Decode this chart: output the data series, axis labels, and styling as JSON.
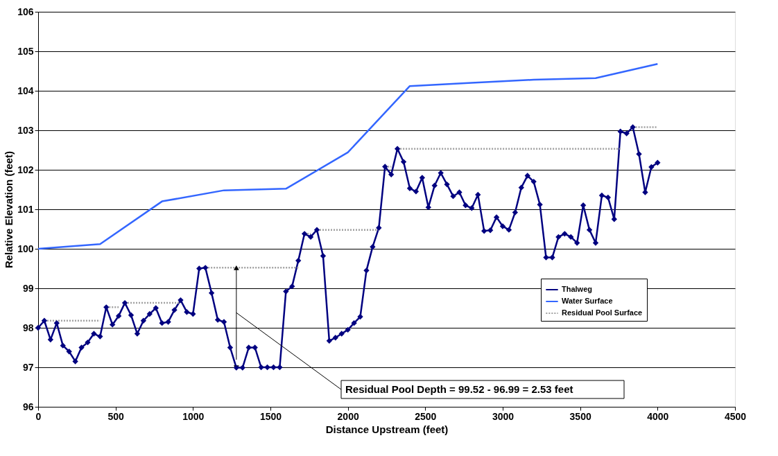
{
  "chart_data": {
    "type": "line",
    "xlabel": "Distance Upstream (feet)",
    "ylabel": "Relative Elevation (feet)",
    "xlim": [
      0,
      4500
    ],
    "xticks": [
      0,
      500,
      1000,
      1500,
      2000,
      2500,
      3000,
      3500,
      4000,
      4500
    ],
    "ylim": [
      96,
      106
    ],
    "yticks": [
      96,
      97,
      98,
      99,
      100,
      101,
      102,
      103,
      104,
      105,
      106
    ],
    "grid": "y",
    "legend": "right",
    "annotations": [
      "Residual Pool Depth =  99.52 - 96.99 = 2.53 feet"
    ],
    "series": [
      {
        "name": "Thalweg",
        "color": "#000080",
        "marker": "diamond",
        "line_style": "solid",
        "x": [
          0,
          40,
          80,
          120,
          160,
          200,
          240,
          280,
          320,
          360,
          400,
          440,
          480,
          520,
          560,
          600,
          640,
          680,
          720,
          760,
          800,
          840,
          880,
          920,
          960,
          1000,
          1040,
          1080,
          1120,
          1160,
          1200,
          1240,
          1280,
          1320,
          1360,
          1400,
          1440,
          1480,
          1520,
          1560,
          1600,
          1640,
          1680,
          1720,
          1760,
          1800,
          1840,
          1880,
          1920,
          1960,
          2000,
          2040,
          2080,
          2120,
          2160,
          2200,
          2240,
          2280,
          2320,
          2360,
          2400,
          2440,
          2480,
          2520,
          2560,
          2600,
          2640,
          2680,
          2720,
          2760,
          2800,
          2840,
          2880,
          2920,
          2960,
          3000,
          3040,
          3080,
          3120,
          3160,
          3200,
          3240,
          3280,
          3320,
          3360,
          3400,
          3440,
          3480,
          3520,
          3560,
          3600,
          3640,
          3680,
          3720,
          3760,
          3800,
          3840,
          3880,
          3920,
          3960,
          4000
        ],
        "values": [
          98.0,
          98.18,
          97.7,
          98.12,
          97.55,
          97.4,
          97.15,
          97.5,
          97.63,
          97.85,
          97.78,
          98.52,
          98.08,
          98.3,
          98.63,
          98.32,
          97.85,
          98.18,
          98.35,
          98.5,
          98.12,
          98.15,
          98.45,
          98.7,
          98.4,
          98.35,
          99.5,
          99.52,
          98.88,
          98.2,
          98.15,
          97.5,
          96.99,
          96.99,
          97.5,
          97.5,
          97.0,
          97.0,
          97.0,
          97.0,
          98.92,
          99.05,
          99.7,
          100.38,
          100.3,
          100.48,
          99.82,
          97.67,
          97.75,
          97.85,
          97.95,
          98.12,
          98.28,
          99.45,
          100.05,
          100.53,
          102.08,
          101.88,
          102.53,
          102.2,
          101.53,
          101.45,
          101.8,
          101.05,
          101.6,
          101.92,
          101.63,
          101.33,
          101.43,
          101.1,
          101.03,
          101.37,
          100.45,
          100.47,
          100.8,
          100.57,
          100.48,
          100.92,
          101.55,
          101.85,
          101.7,
          101.12,
          99.78,
          99.78,
          100.3,
          100.38,
          100.3,
          100.15,
          101.1,
          100.48,
          100.15,
          101.35,
          101.3,
          100.75,
          102.97,
          102.92,
          103.08,
          102.4,
          101.43,
          102.07,
          102.18
        ]
      },
      {
        "name": "Water Surface",
        "color": "#3366ff",
        "marker": "none",
        "line_style": "solid",
        "x": [
          0,
          400,
          800,
          1200,
          1600,
          2000,
          2400,
          2800,
          3200,
          3600,
          4000
        ],
        "values": [
          100.0,
          100.12,
          101.2,
          101.48,
          101.52,
          102.44,
          104.12,
          104.2,
          104.28,
          104.32,
          104.68
        ]
      },
      {
        "name": "Residual Pool Surface",
        "color": "#a0a0a0",
        "marker": "none",
        "line_style": "dotted",
        "x": [
          40,
          400,
          420,
          440,
          520,
          540,
          560,
          920,
          1000,
          1080,
          1680,
          1700,
          1720,
          1760,
          1780,
          1800,
          2200,
          2220,
          2240,
          2280,
          2300,
          2320,
          3760,
          3800,
          3840,
          4000
        ],
        "values": [
          98.18,
          98.18,
          null,
          98.52,
          98.52,
          null,
          98.63,
          98.63,
          null,
          99.52,
          99.52,
          null,
          100.38,
          100.38,
          null,
          100.48,
          100.48,
          null,
          102.08,
          102.08,
          null,
          102.53,
          102.53,
          null,
          103.08,
          103.08
        ]
      }
    ]
  }
}
